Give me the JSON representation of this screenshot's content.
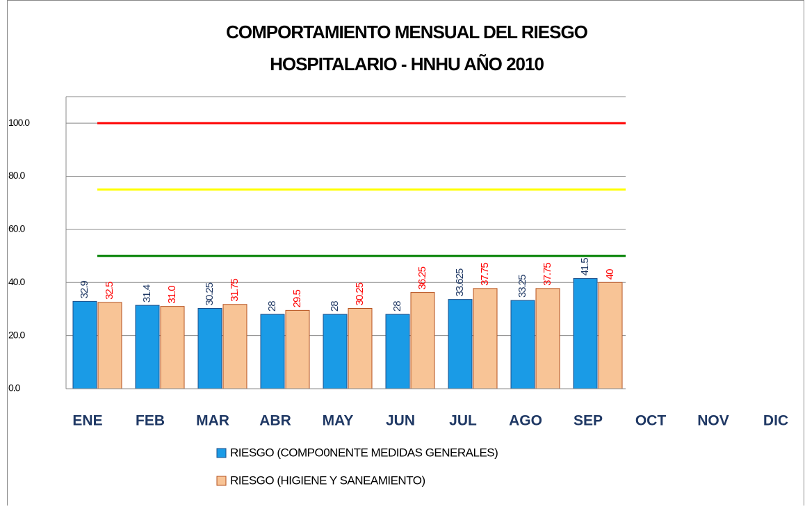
{
  "chart_data": {
    "type": "bar",
    "title": [
      "COMPORTAMIENTO MENSUAL DEL RIESGO",
      "HOSPITALARIO - HNHU AÑO 2010"
    ],
    "categories": [
      "ENE",
      "FEB",
      "MAR",
      "ABR",
      "MAY",
      "JUN",
      "JUL",
      "AGO",
      "SEP",
      "OCT",
      "NOV",
      "DIC"
    ],
    "series": [
      {
        "name": "RIESGO (COMPO0NENTE MEDIDAS GENERALES)",
        "color": "#1a9be6",
        "border": "#1d4f8a",
        "label_color": "#1f3864",
        "values": [
          32.9,
          31.4,
          30.25,
          28,
          28,
          28,
          33.625,
          33.25,
          41.5,
          null,
          null,
          null
        ]
      },
      {
        "name": "RIESGO (HIGIENE Y SANEAMIENTO)",
        "color": "#f8c496",
        "border": "#b5501e",
        "label_color": "#ff0000",
        "values": [
          32.5,
          31.0,
          31.75,
          29.5,
          30.25,
          36.25,
          37.75,
          37.75,
          40,
          null,
          null,
          null
        ],
        "value_labels": [
          "32.5",
          "31.0",
          "31.75",
          "29.5",
          "30.25",
          "36.25",
          "37.75",
          "37.75",
          "40",
          null,
          null,
          null
        ]
      }
    ],
    "reference_lines": [
      {
        "value": 100,
        "color": "#ff0000"
      },
      {
        "value": 75,
        "color": "#ffff00"
      },
      {
        "value": 50,
        "color": "#008000"
      }
    ],
    "ylim": [
      0,
      110
    ],
    "yticks": [
      {
        "value": 0,
        "label": "0.0"
      },
      {
        "value": 20,
        "label": "20.0"
      },
      {
        "value": 40,
        "label": "40.0"
      },
      {
        "value": 60,
        "label": "60.0"
      },
      {
        "value": 80,
        "label": "80.0"
      },
      {
        "value": 100,
        "label": "100.0"
      }
    ],
    "grid": true,
    "legend": "bottom"
  }
}
